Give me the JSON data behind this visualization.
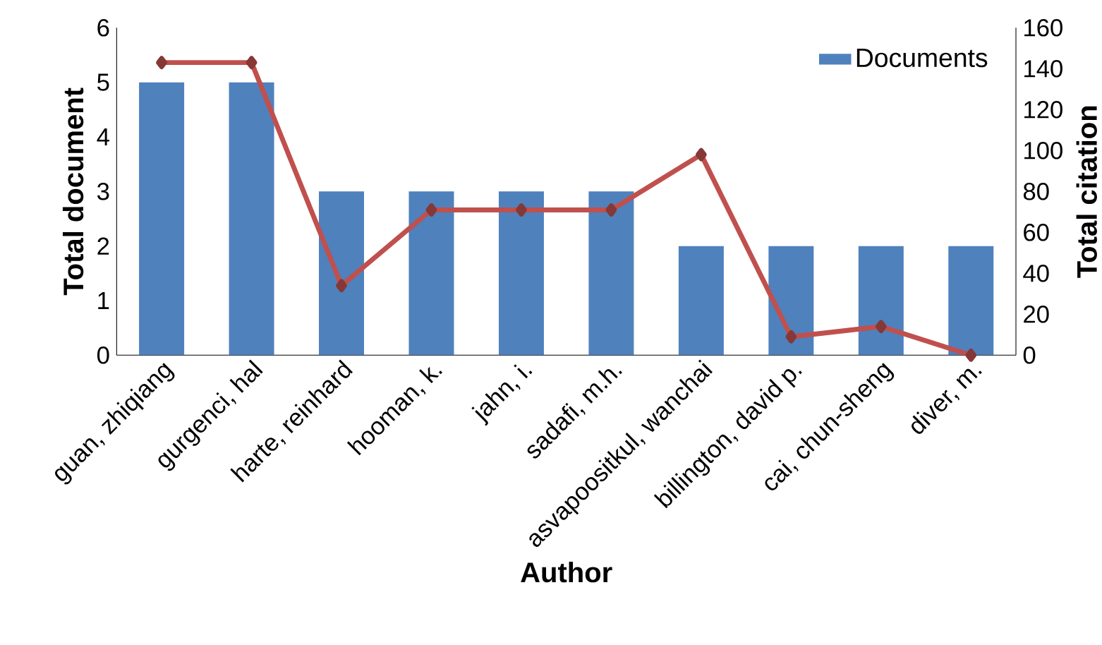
{
  "chart_data": {
    "type": "bar",
    "xlabel": "Author",
    "ylabel": "Total document",
    "y2label": "Total citation",
    "categories": [
      "guan, zhiqiang",
      "gurgenci, hal",
      "harte, reinhard",
      "hooman, k.",
      "jahn, i.",
      "sadafi, m.h.",
      "asvapoositkul, wanchai",
      "billington, david p.",
      "cai, chun-sheng",
      "diver, m."
    ],
    "series": [
      {
        "name": "Documents",
        "color": "#4f81bd",
        "values": [
          5,
          5,
          3,
          3,
          3,
          3,
          2,
          2,
          2,
          2
        ]
      },
      {
        "type": "line",
        "axis": "y2",
        "color": "#c0504d",
        "marker": "diamond",
        "values": [
          143,
          143,
          34,
          71,
          71,
          71,
          98,
          9,
          14,
          0
        ]
      }
    ],
    "ylim": [
      0,
      6
    ],
    "yticks": [
      0,
      1,
      2,
      3,
      4,
      5,
      6
    ],
    "y2lim": [
      0,
      160
    ],
    "y2ticks": [
      0,
      20,
      40,
      60,
      80,
      100,
      120,
      140,
      160
    ],
    "legend": "top right"
  }
}
